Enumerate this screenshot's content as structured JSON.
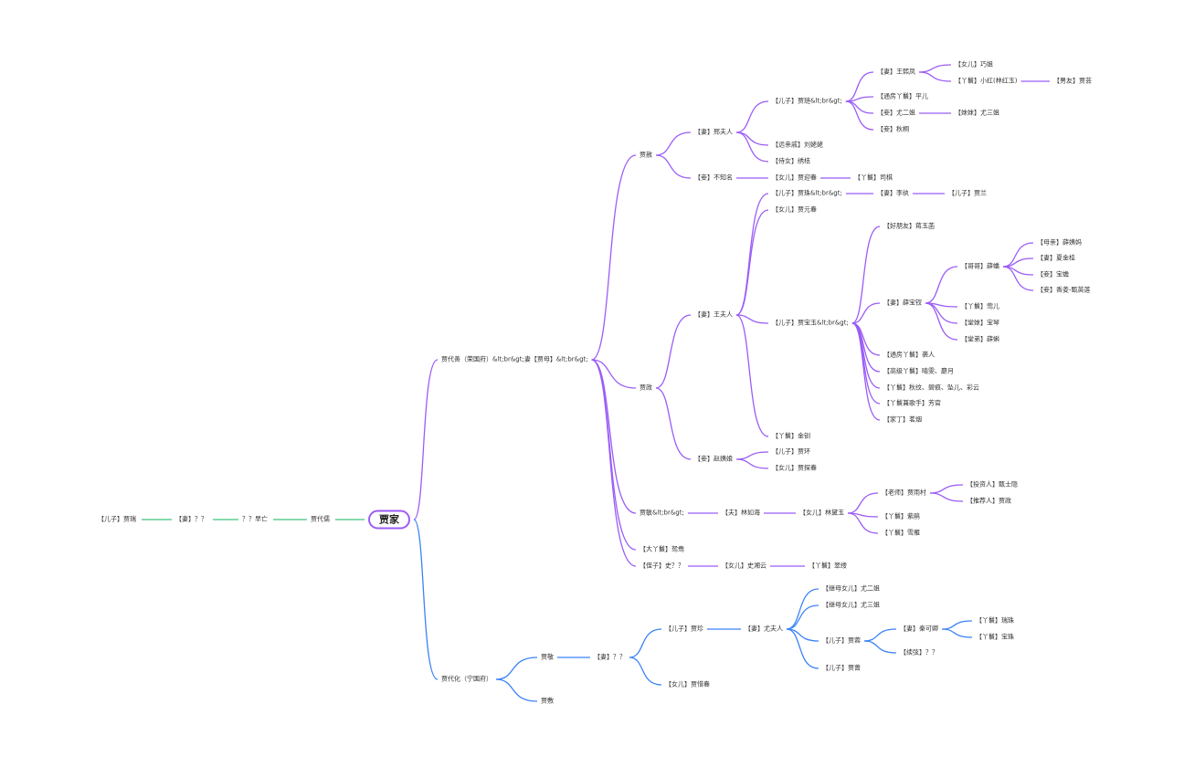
{
  "colors": {
    "root_border": "#9b5cf6",
    "left_chain": "#3fc47a",
    "rongguo": "#9b5cf6",
    "ningguo": "#3b82f6"
  },
  "root": {
    "id": "root",
    "label": "贾家"
  },
  "left_chain": [
    {
      "id": "l1",
      "label": "贾代儒"
    },
    {
      "id": "l2",
      "label": "？？早亡"
    },
    {
      "id": "l3",
      "label": "【妻】？？"
    },
    {
      "id": "l4",
      "label": "【儿子】贾瑞"
    }
  ],
  "branches": [
    {
      "id": "b1",
      "color_key": "rongguo",
      "label": "贾代善（荣国府）&lt;br&gt;妻【贾母】&lt;br&gt;",
      "children": [
        {
          "id": "she",
          "label": "贾赦",
          "children": [
            {
              "id": "xing",
              "label": "【妻】邢夫人",
              "children": [
                {
                  "id": "lian",
                  "label": "【儿子】贾琏&lt;br&gt;",
                  "children": [
                    {
                      "id": "wxf",
                      "label": "【妻】王熙凤",
                      "children": [
                        {
                          "id": "qj",
                          "label": "【女儿】巧姐"
                        },
                        {
                          "id": "xh",
                          "label": "【丫鬟】小红(林红玉)",
                          "children": [
                            {
                              "id": "jy",
                              "label": "【男友】贾芸"
                            }
                          ]
                        }
                      ]
                    },
                    {
                      "id": "pe",
                      "label": "【通房丫鬟】平儿"
                    },
                    {
                      "id": "yej",
                      "label": "【妾】尤二姐",
                      "children": [
                        {
                          "id": "ysj",
                          "label": "【妹妹】尤三姐"
                        }
                      ]
                    },
                    {
                      "id": "qt",
                      "label": "【妾】秋桐"
                    }
                  ]
                },
                {
                  "id": "lll",
                  "label": "【远亲戚】刘姥姥"
                },
                {
                  "id": "xj",
                  "label": "【侍女】绣桔"
                }
              ]
            },
            {
              "id": "bzm",
              "label": "【妾】不知名",
              "children": [
                {
                  "id": "yc",
                  "label": "【女儿】贾迎春",
                  "children": [
                    {
                      "id": "sq",
                      "label": "【丫鬟】司棋"
                    }
                  ]
                }
              ]
            }
          ]
        },
        {
          "id": "zheng",
          "label": "贾政",
          "children": [
            {
              "id": "wang",
              "label": "【妻】王夫人",
              "children": [
                {
                  "id": "zhu",
                  "label": "【儿子】贾珠&lt;br&gt;",
                  "children": [
                    {
                      "id": "lw",
                      "label": "【妻】李纨",
                      "children": [
                        {
                          "id": "lan",
                          "label": "【儿子】贾兰"
                        }
                      ]
                    }
                  ]
                },
                {
                  "id": "yuanc",
                  "label": "【女儿】贾元春"
                },
                {
                  "id": "by",
                  "label": "【儿子】贾宝玉&lt;br&gt;",
                  "children": [
                    {
                      "id": "jyh",
                      "label": "【好朋友】蒋玉菡"
                    },
                    {
                      "id": "bc",
                      "label": "【妻】薛宝钗",
                      "children": [
                        {
                          "id": "xp",
                          "label": "【哥哥】薛蟠",
                          "children": [
                            {
                              "id": "xym",
                              "label": "【母亲】薛姨妈"
                            },
                            {
                              "id": "xjg",
                              "label": "【妻】夏金桂"
                            },
                            {
                              "id": "bch",
                              "label": "【妾】宝蟾"
                            },
                            {
                              "id": "xl",
                              "label": "【妾】香菱-甄英莲"
                            }
                          ]
                        },
                        {
                          "id": "ye",
                          "label": "【丫鬟】莺儿"
                        },
                        {
                          "id": "bq",
                          "label": "【堂妹】宝琴"
                        },
                        {
                          "id": "xk",
                          "label": "【堂弟】薛蝌"
                        }
                      ]
                    },
                    {
                      "id": "xr",
                      "label": "【通房丫鬟】袭人"
                    },
                    {
                      "id": "qw",
                      "label": "【高级丫鬟】晴雯、麝月"
                    },
                    {
                      "id": "qwen",
                      "label": "【丫鬟】秋纹、碧痕、坠儿、彩云"
                    },
                    {
                      "id": "fg",
                      "label": "【丫鬟兼歌手】芳官"
                    },
                    {
                      "id": "my",
                      "label": "【家丁】茗烟"
                    }
                  ]
                },
                {
                  "id": "jc",
                  "label": "【丫鬟】金钏"
                }
              ]
            },
            {
              "id": "zhao",
              "label": "【妾】赵姨娘",
              "children": [
                {
                  "id": "huan",
                  "label": "【儿子】贾环"
                },
                {
                  "id": "tc",
                  "label": "【女儿】贾探春"
                }
              ]
            }
          ]
        },
        {
          "id": "min",
          "label": "贾敏&lt;br&gt;",
          "children": [
            {
              "id": "lrh",
              "label": "【夫】林如海",
              "children": [
                {
                  "id": "ldy",
                  "label": "【女儿】林黛玉",
                  "children": [
                    {
                      "id": "yc2",
                      "label": "【老师】贾雨村",
                      "children": [
                        {
                          "id": "zsy",
                          "label": "【投资人】甄士隐"
                        },
                        {
                          "id": "jz2",
                          "label": "【推荐人】贾政"
                        }
                      ]
                    },
                    {
                      "id": "zj",
                      "label": "【丫鬟】紫鹃"
                    },
                    {
                      "id": "xy",
                      "label": "【丫鬟】雪雁"
                    }
                  ]
                }
              ]
            }
          ]
        },
        {
          "id": "yy",
          "label": "【大丫鬟】鸳鸯"
        },
        {
          "id": "shi",
          "label": "【侄子】史？？",
          "children": [
            {
              "id": "sxy",
              "label": "【女儿】史湘云",
              "children": [
                {
                  "id": "cl",
                  "label": "【丫鬟】翠缕"
                }
              ]
            }
          ]
        }
      ]
    },
    {
      "id": "b2",
      "color_key": "ningguo",
      "label": "贾代化（宁国府）",
      "children": [
        {
          "id": "jing",
          "label": "贾敬",
          "children": [
            {
              "id": "jqq",
              "label": "【妻】？？",
              "children": [
                {
                  "id": "zhen",
                  "label": "【儿子】贾珍",
                  "children": [
                    {
                      "id": "you",
                      "label": "【妻】尤夫人",
                      "children": [
                        {
                          "id": "y2",
                          "label": "【继母女儿】尤二姐"
                        },
                        {
                          "id": "y3",
                          "label": "【继母女儿】尤三姐"
                        },
                        {
                          "id": "rong",
                          "label": "【儿子】贾蓉",
                          "children": [
                            {
                              "id": "qkq",
                              "label": "【妻】秦可卿",
                              "children": [
                                {
                                  "id": "rz",
                                  "label": "【丫鬟】瑞珠"
                                },
                                {
                                  "id": "bz",
                                  "label": "【丫鬟】宝珠"
                                }
                              ]
                            },
                            {
                              "id": "xx",
                              "label": "【续弦】？？"
                            }
                          ]
                        },
                        {
                          "id": "qiang",
                          "label": "【儿子】贾蔷"
                        }
                      ]
                    }
                  ]
                },
                {
                  "id": "xc",
                  "label": "【女儿】贾惜春"
                }
              ]
            }
          ]
        },
        {
          "id": "fu",
          "label": "贾敷"
        }
      ]
    }
  ]
}
